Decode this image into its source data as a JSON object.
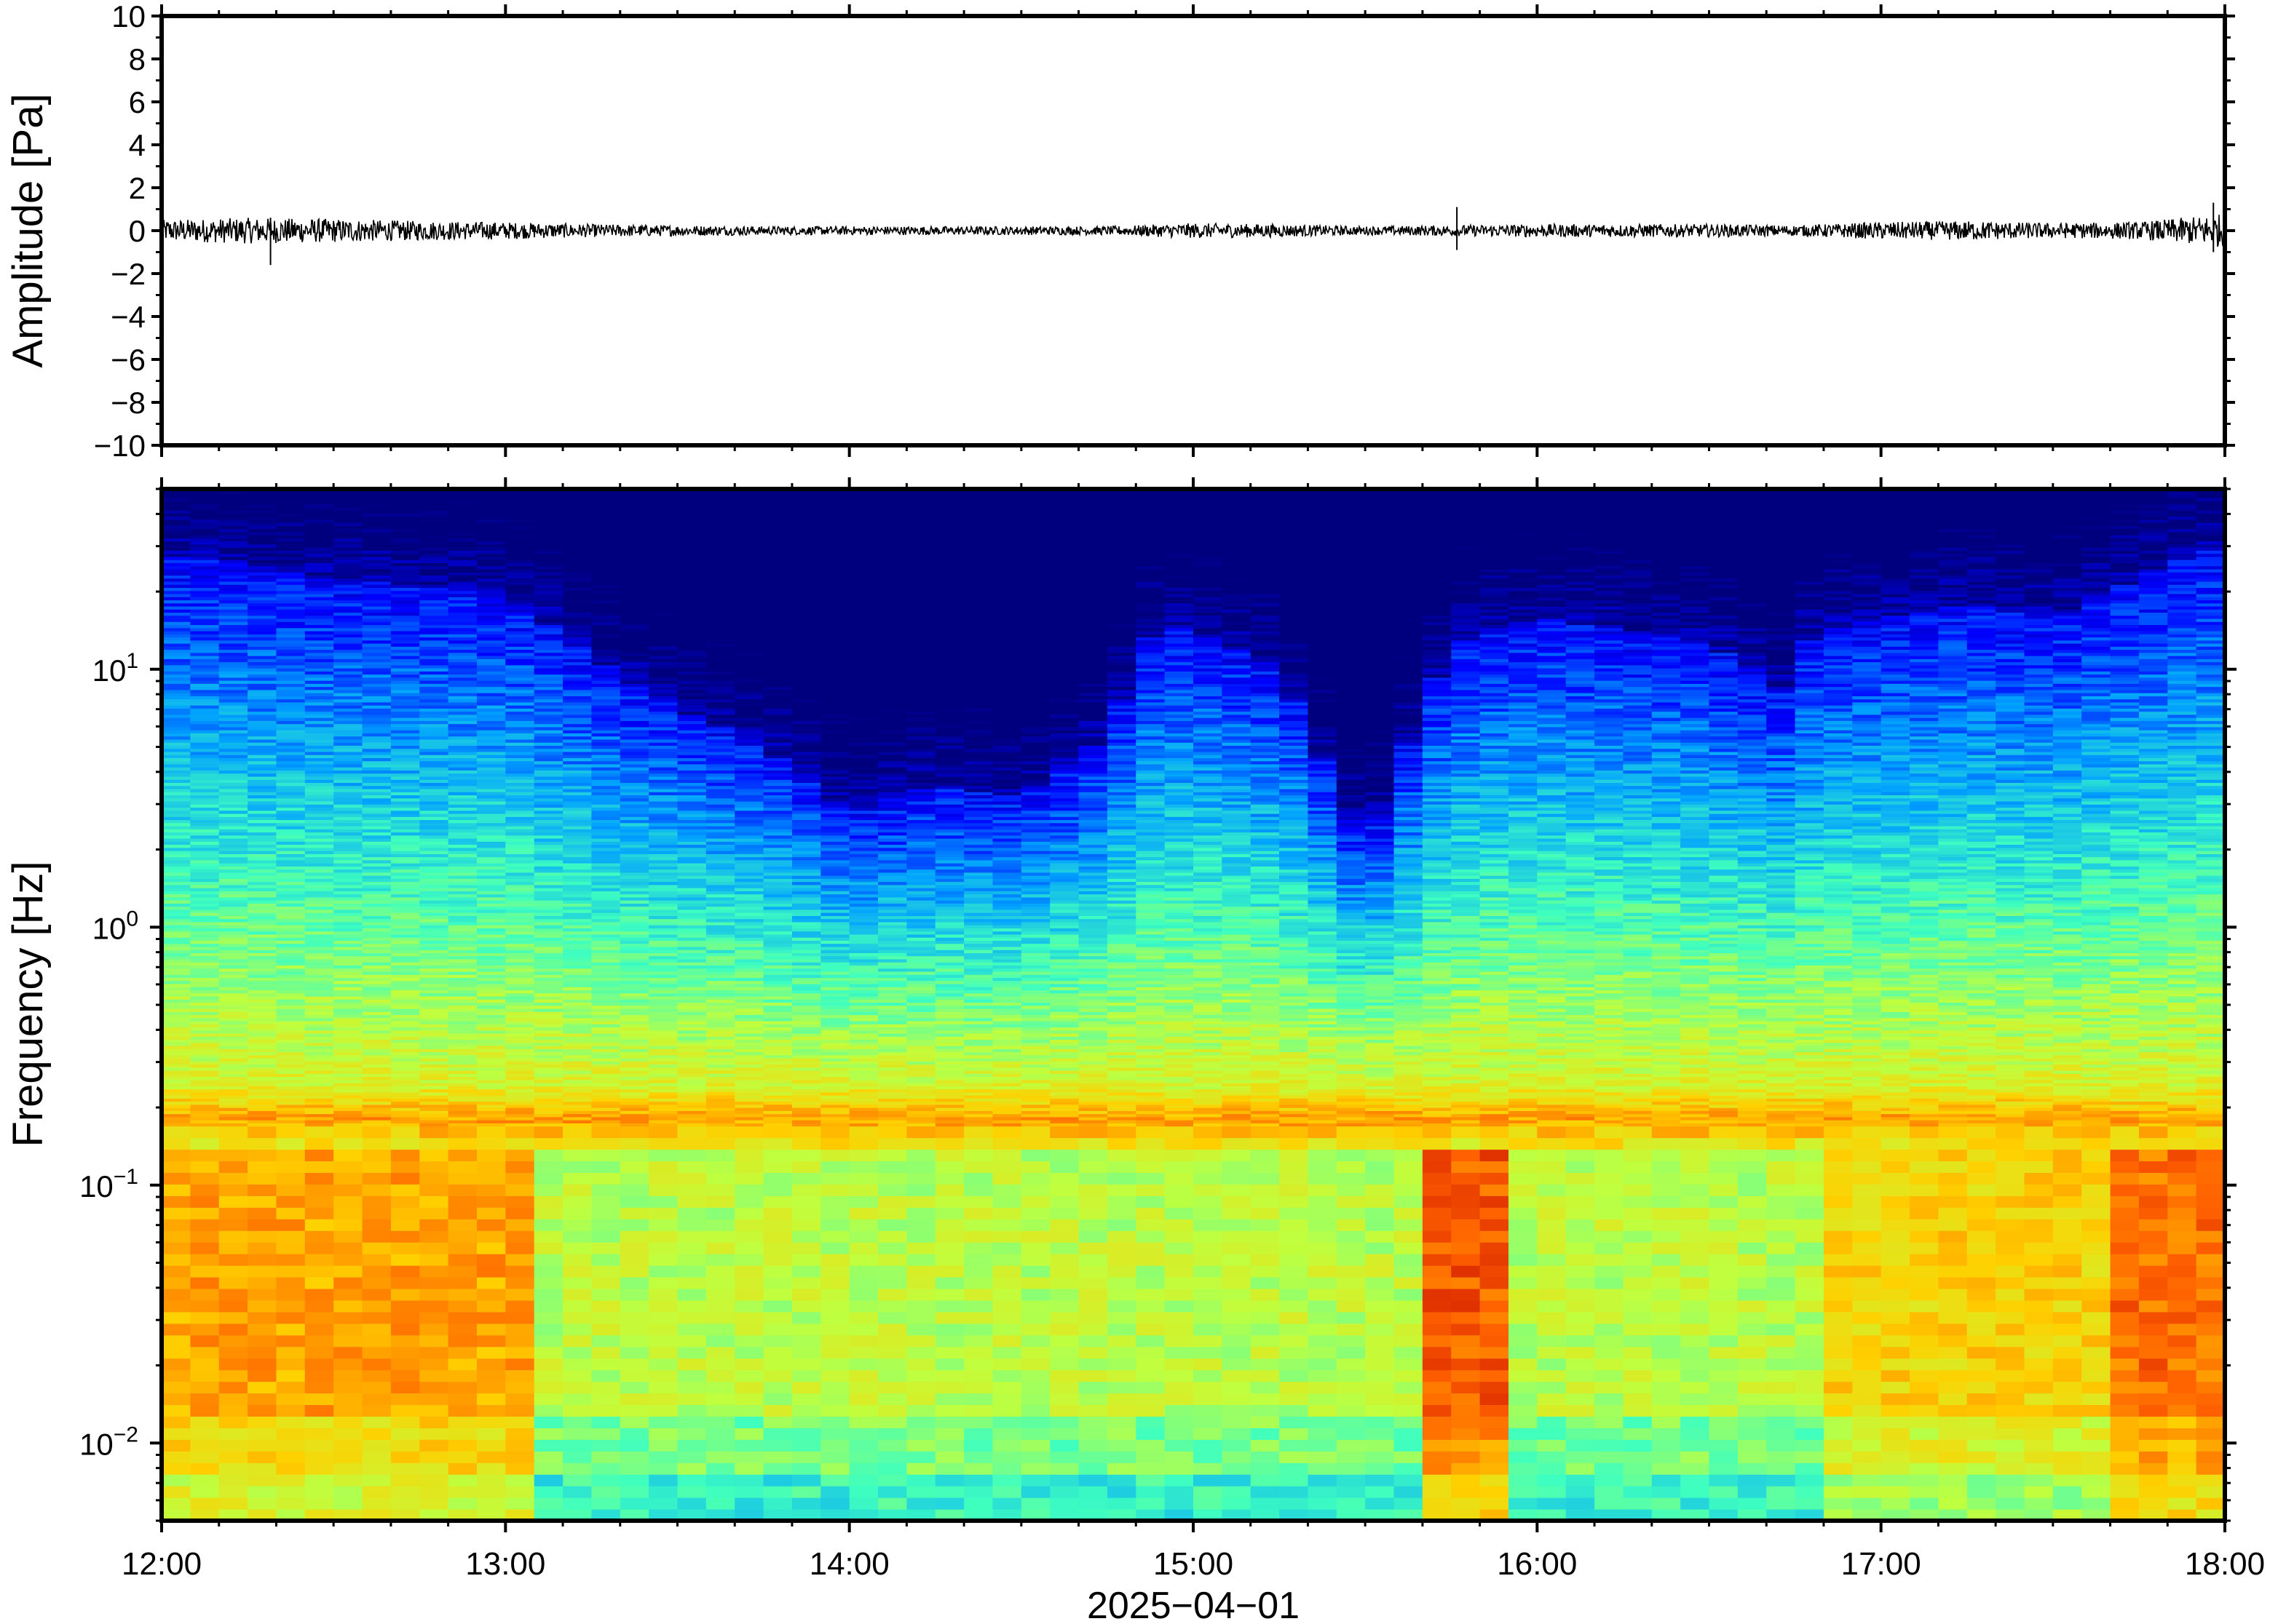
{
  "chart_data": [
    {
      "type": "line",
      "panel": "waveform",
      "ylabel": "Amplitude [Pa]",
      "ylim": [
        -10,
        10
      ],
      "y_ticks": [
        "10",
        "8",
        "6",
        "4",
        "2",
        "0",
        "−2",
        "−4",
        "−6",
        "−8",
        "−10"
      ],
      "y_tick_values": [
        10,
        8,
        6,
        4,
        2,
        0,
        -2,
        -4,
        -6,
        -8,
        -10
      ],
      "x_range": [
        "12:00",
        "18:00"
      ],
      "line_color": "#000000",
      "envelope": {
        "description_hours": [
          12.0,
          12.25,
          12.5,
          12.75,
          13.0,
          13.25,
          13.5,
          13.75,
          14.0,
          14.25,
          14.5,
          14.75,
          15.0,
          15.25,
          15.5,
          15.75,
          16.0,
          16.25,
          16.5,
          16.75,
          17.0,
          17.25,
          17.5,
          17.75,
          18.0
        ],
        "amplitude_pa": [
          0.5,
          0.6,
          0.55,
          0.45,
          0.4,
          0.3,
          0.25,
          0.2,
          0.2,
          0.2,
          0.2,
          0.2,
          0.35,
          0.3,
          0.2,
          0.25,
          0.3,
          0.3,
          0.3,
          0.25,
          0.4,
          0.45,
          0.35,
          0.4,
          0.8
        ]
      },
      "spikes": [
        {
          "time": "12:19",
          "min": -1.6,
          "max": 0.6
        },
        {
          "time": "15:46",
          "min": -0.9,
          "max": 1.1
        },
        {
          "time": "17:58",
          "min": -1.0,
          "max": 1.3
        }
      ]
    },
    {
      "type": "heatmap",
      "panel": "spectrogram",
      "ylabel": "Frequency [Hz]",
      "yscale": "log",
      "ylim": [
        0.005,
        50
      ],
      "y_ticks": [
        {
          "base": "10",
          "exp": "1",
          "value": 10
        },
        {
          "base": "10",
          "exp": "0",
          "value": 1
        },
        {
          "base": "10",
          "exp": "−1",
          "value": 0.1
        },
        {
          "base": "10",
          "exp": "−2",
          "value": 0.01
        }
      ],
      "xlabel": "2025−04−01",
      "x_ticks": [
        "12:00",
        "13:00",
        "14:00",
        "15:00",
        "16:00",
        "17:00",
        "18:00"
      ],
      "x_range_hours": [
        12,
        18
      ],
      "colormap": "jet",
      "colormap_stops": [
        "#00007f",
        "#0000ff",
        "#00a0ff",
        "#3fffbf",
        "#bfff3f",
        "#ffd000",
        "#ff6000",
        "#c00000"
      ],
      "microseism_band_hz": 0.18,
      "time_columns": 72,
      "noise_ceiling_log10hz_by_hour": {
        "hours": [
          12.0,
          12.5,
          13.0,
          13.25,
          13.5,
          13.75,
          14.0,
          14.25,
          14.5,
          14.75,
          14.9,
          15.25,
          15.5,
          15.75,
          16.0,
          16.5,
          16.75,
          16.8,
          17.25,
          17.5,
          17.75,
          18.0
        ],
        "log10_freq": [
          1.45,
          1.35,
          1.3,
          1.05,
          0.85,
          0.7,
          0.45,
          0.55,
          0.5,
          0.75,
          1.2,
          1.0,
          0.3,
          1.1,
          1.2,
          1.1,
          0.9,
          1.15,
          1.25,
          1.2,
          1.35,
          1.5
        ]
      }
    }
  ]
}
